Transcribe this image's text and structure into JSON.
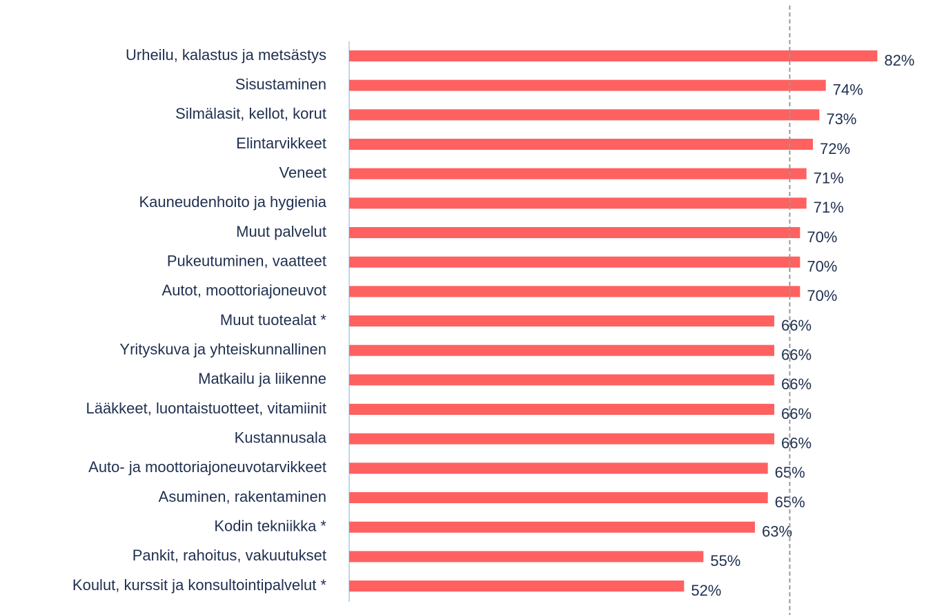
{
  "chart_data": {
    "type": "barh",
    "categories": [
      "Urheilu, kalastus ja metsästys",
      "Sisustaminen",
      "Silmälasit, kellot, korut",
      "Elintarvikkeet",
      "Veneet",
      "Kauneudenhoito ja hygienia",
      "Muut palvelut",
      "Pukeutuminen, vaatteet",
      "Autot, moottoriajoneuvot",
      "Muut tuotealat *",
      "Yrityskuva ja yhteiskunnallinen",
      "Matkailu ja liikenne",
      "Lääkkeet, luontaistuotteet, vitamiinit",
      "Kustannusala",
      "Auto- ja moottoriajoneuvotarvikkeet",
      "Asuminen, rakentaminen",
      "Kodin tekniikka *",
      "Pankit, rahoitus, vakuutukset",
      "Koulut, kurssit ja konsultointipalvelut *"
    ],
    "values": [
      82,
      74,
      73,
      72,
      71,
      71,
      70,
      70,
      70,
      66,
      66,
      66,
      66,
      66,
      65,
      65,
      63,
      55,
      52
    ],
    "value_labels": [
      "82%",
      "74%",
      "73%",
      "72%",
      "71%",
      "71%",
      "70%",
      "70%",
      "70%",
      "66%",
      "66%",
      "66%",
      "66%",
      "66%",
      "65%",
      "65%",
      "63%",
      "55%",
      "52%"
    ],
    "color": "#ff6161",
    "xlim": [
      0,
      90
    ],
    "reference_line": 68.4
  }
}
